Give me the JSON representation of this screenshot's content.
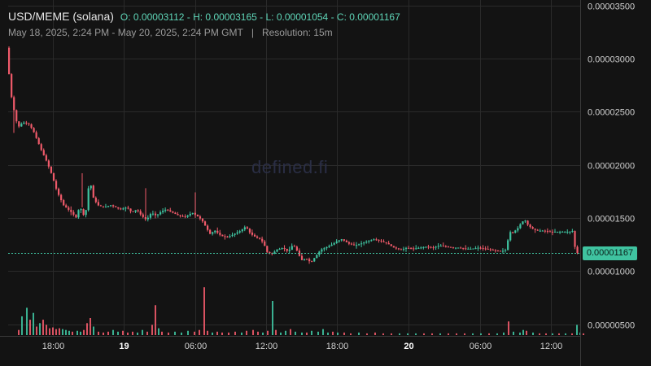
{
  "header": {
    "symbol": "USD/MEME (solana)",
    "ohlc": "O: 0.00003112 - H: 0.00003165 - L: 0.00001054 - C: 0.00001167",
    "date_range": "May 18, 2025, 2:24 PM - May 20, 2025, 2:24 PM GMT",
    "separator": "|",
    "resolution": "Resolution: 15m"
  },
  "watermark": "defined.fi",
  "last_price_label": "0.00001167",
  "colors": {
    "up": "#3fc3a0",
    "down": "#ef5a6a",
    "grid": "#2a2a2a",
    "background": "#131313"
  },
  "chart_data": {
    "type": "candlestick",
    "y_ticks": [
      "0.00003500",
      "0.00003000",
      "0.00002500",
      "0.00002000",
      "0.00001500",
      "0.00001000",
      "0.00000500"
    ],
    "x_ticks": [
      "18:00",
      "19",
      "06:00",
      "12:00",
      "18:00",
      "20",
      "06:00",
      "12:00"
    ],
    "ylim": [
      3.9e-06,
      3.55e-05
    ],
    "last_price": 1.167e-05,
    "price_path": [
      [
        0,
        3.1
      ],
      [
        1,
        3.14
      ],
      [
        4,
        2.72
      ],
      [
        10,
        2.48
      ],
      [
        14,
        2.35
      ],
      [
        20,
        2.4
      ],
      [
        28,
        2.38
      ],
      [
        34,
        2.3
      ],
      [
        42,
        2.15
      ],
      [
        50,
        2.02
      ],
      [
        55,
        1.92
      ],
      [
        62,
        1.75
      ],
      [
        70,
        1.62
      ],
      [
        80,
        1.55
      ],
      [
        86,
        1.5
      ],
      [
        90,
        1.62
      ],
      [
        94,
        1.52
      ],
      [
        98,
        1.58
      ],
      [
        102,
        1.88
      ],
      [
        106,
        1.7
      ],
      [
        112,
        1.62
      ],
      [
        120,
        1.6
      ],
      [
        128,
        1.62
      ],
      [
        134,
        1.6
      ],
      [
        140,
        1.58
      ],
      [
        148,
        1.6
      ],
      [
        154,
        1.55
      ],
      [
        160,
        1.58
      ],
      [
        166,
        1.52
      ],
      [
        172,
        1.48
      ],
      [
        178,
        1.55
      ],
      [
        184,
        1.52
      ],
      [
        190,
        1.56
      ],
      [
        196,
        1.58
      ],
      [
        204,
        1.55
      ],
      [
        212,
        1.52
      ],
      [
        220,
        1.51
      ],
      [
        228,
        1.55
      ],
      [
        234,
        1.52
      ],
      [
        240,
        1.48
      ],
      [
        246,
        1.4
      ],
      [
        250,
        1.35
      ],
      [
        256,
        1.38
      ],
      [
        264,
        1.33
      ],
      [
        272,
        1.32
      ],
      [
        280,
        1.35
      ],
      [
        288,
        1.38
      ],
      [
        294,
        1.42
      ],
      [
        300,
        1.35
      ],
      [
        306,
        1.32
      ],
      [
        312,
        1.3
      ],
      [
        316,
        1.26
      ],
      [
        320,
        1.18
      ],
      [
        326,
        1.16
      ],
      [
        332,
        1.2
      ],
      [
        340,
        1.22
      ],
      [
        346,
        1.18
      ],
      [
        352,
        1.25
      ],
      [
        358,
        1.18
      ],
      [
        362,
        1.1
      ],
      [
        368,
        1.12
      ],
      [
        374,
        1.08
      ],
      [
        380,
        1.14
      ],
      [
        386,
        1.2
      ],
      [
        392,
        1.22
      ],
      [
        400,
        1.25
      ],
      [
        406,
        1.28
      ],
      [
        412,
        1.3
      ],
      [
        420,
        1.26
      ],
      [
        428,
        1.24
      ],
      [
        436,
        1.26
      ],
      [
        444,
        1.28
      ],
      [
        452,
        1.3
      ],
      [
        460,
        1.28
      ],
      [
        468,
        1.26
      ],
      [
        476,
        1.22
      ],
      [
        484,
        1.2
      ],
      [
        492,
        1.22
      ],
      [
        500,
        1.21
      ],
      [
        508,
        1.22
      ],
      [
        516,
        1.23
      ],
      [
        524,
        1.22
      ],
      [
        532,
        1.24
      ],
      [
        540,
        1.23
      ],
      [
        548,
        1.22
      ],
      [
        556,
        1.22
      ],
      [
        564,
        1.21
      ],
      [
        572,
        1.21
      ],
      [
        580,
        1.22
      ],
      [
        588,
        1.21
      ],
      [
        596,
        1.2
      ],
      [
        604,
        1.19
      ],
      [
        610,
        1.19
      ],
      [
        614,
        1.2
      ],
      [
        618,
        1.37
      ],
      [
        622,
        1.36
      ],
      [
        628,
        1.4
      ],
      [
        633,
        1.46
      ],
      [
        637,
        1.48
      ],
      [
        641,
        1.43
      ],
      [
        646,
        1.4
      ],
      [
        652,
        1.38
      ],
      [
        660,
        1.38
      ],
      [
        668,
        1.37
      ],
      [
        676,
        1.37
      ],
      [
        684,
        1.37
      ],
      [
        692,
        1.37
      ],
      [
        697,
        1.38
      ],
      [
        699,
        1.17
      ],
      [
        704,
        1.17
      ],
      [
        708,
        1.167
      ]
    ],
    "volume": [
      [
        12,
        6
      ],
      [
        16,
        22
      ],
      [
        22,
        32
      ],
      [
        26,
        18
      ],
      [
        30,
        26
      ],
      [
        34,
        10
      ],
      [
        38,
        14
      ],
      [
        42,
        18
      ],
      [
        46,
        12
      ],
      [
        50,
        8
      ],
      [
        54,
        9
      ],
      [
        58,
        7
      ],
      [
        62,
        8
      ],
      [
        66,
        7
      ],
      [
        70,
        6
      ],
      [
        74,
        5
      ],
      [
        78,
        4
      ],
      [
        84,
        5
      ],
      [
        88,
        4
      ],
      [
        92,
        6
      ],
      [
        96,
        14
      ],
      [
        100,
        20
      ],
      [
        104,
        10
      ],
      [
        110,
        4
      ],
      [
        116,
        3
      ],
      [
        122,
        4
      ],
      [
        128,
        6
      ],
      [
        134,
        4
      ],
      [
        140,
        5
      ],
      [
        146,
        3
      ],
      [
        152,
        4
      ],
      [
        158,
        3
      ],
      [
        164,
        6
      ],
      [
        170,
        4
      ],
      [
        176,
        12
      ],
      [
        180,
        35
      ],
      [
        184,
        8
      ],
      [
        188,
        4
      ],
      [
        196,
        3
      ],
      [
        204,
        4
      ],
      [
        212,
        3
      ],
      [
        220,
        5
      ],
      [
        228,
        4
      ],
      [
        234,
        6
      ],
      [
        240,
        56
      ],
      [
        244,
        5
      ],
      [
        250,
        3
      ],
      [
        256,
        4
      ],
      [
        262,
        3
      ],
      [
        270,
        3
      ],
      [
        278,
        4
      ],
      [
        286,
        3
      ],
      [
        292,
        5
      ],
      [
        300,
        6
      ],
      [
        306,
        4
      ],
      [
        312,
        3
      ],
      [
        318,
        5
      ],
      [
        324,
        40
      ],
      [
        328,
        6
      ],
      [
        334,
        3
      ],
      [
        340,
        5
      ],
      [
        346,
        7
      ],
      [
        352,
        4
      ],
      [
        360,
        3
      ],
      [
        366,
        3
      ],
      [
        372,
        5
      ],
      [
        380,
        4
      ],
      [
        386,
        7
      ],
      [
        392,
        3
      ],
      [
        398,
        4
      ],
      [
        404,
        3
      ],
      [
        412,
        3
      ],
      [
        420,
        2
      ],
      [
        430,
        3
      ],
      [
        440,
        2
      ],
      [
        450,
        3
      ],
      [
        460,
        2
      ],
      [
        470,
        2
      ],
      [
        480,
        2
      ],
      [
        490,
        2
      ],
      [
        500,
        2
      ],
      [
        510,
        2
      ],
      [
        520,
        2
      ],
      [
        530,
        2
      ],
      [
        540,
        2
      ],
      [
        550,
        2
      ],
      [
        560,
        2
      ],
      [
        570,
        2
      ],
      [
        580,
        2
      ],
      [
        590,
        2
      ],
      [
        600,
        2
      ],
      [
        608,
        3
      ],
      [
        614,
        16
      ],
      [
        620,
        4
      ],
      [
        628,
        3
      ],
      [
        632,
        6
      ],
      [
        636,
        5
      ],
      [
        644,
        3
      ],
      [
        652,
        2
      ],
      [
        660,
        2
      ],
      [
        668,
        2
      ],
      [
        676,
        2
      ],
      [
        684,
        2
      ],
      [
        692,
        2
      ],
      [
        698,
        12
      ],
      [
        702,
        3
      ],
      [
        706,
        2
      ]
    ]
  }
}
